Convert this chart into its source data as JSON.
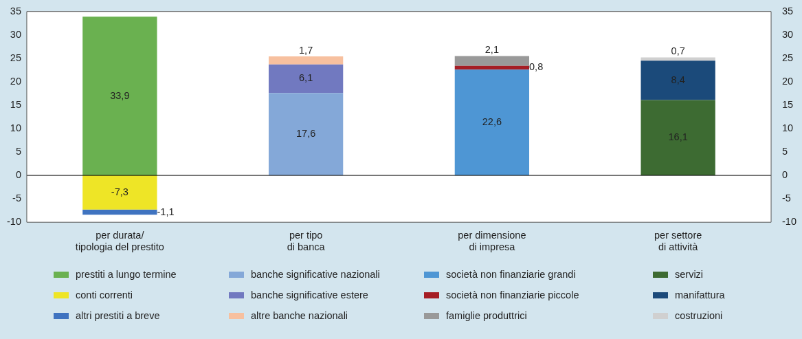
{
  "chart_data": {
    "type": "bar",
    "stacked": true,
    "categories": [
      "per durata/\ntipologia del prestito",
      "per tipo\ndi banca",
      "per dimensione\ndi impresa",
      "per settore\ndi attività"
    ],
    "ylim": [
      -10,
      35
    ],
    "yticks": [
      -10,
      -5,
      0,
      5,
      10,
      15,
      20,
      25,
      30,
      35
    ],
    "y2lim": [
      -10,
      35
    ],
    "y2ticks": [
      -10,
      -5,
      0,
      5,
      10,
      15,
      20,
      25,
      30,
      35
    ],
    "grid": false,
    "legend": "bottom",
    "ref_lines": [
      {
        "axis": "y",
        "value": 0
      }
    ],
    "series": [
      {
        "name": "prestiti a lungo termine",
        "color": "#6ab150",
        "values": [
          33.9,
          null,
          null,
          null
        ],
        "value_labels": [
          "33,9",
          null,
          null,
          null
        ]
      },
      {
        "name": "conti correnti",
        "color": "#eee526",
        "values": [
          -7.3,
          null,
          null,
          null
        ],
        "value_labels": [
          "-7,3",
          null,
          null,
          null
        ]
      },
      {
        "name": "altri prestiti a breve",
        "color": "#3f73c0",
        "values": [
          -1.1,
          null,
          null,
          null
        ],
        "value_labels": [
          "-1,1",
          null,
          null,
          null
        ]
      },
      {
        "name": "banche significative nazionali",
        "color": "#84a8d8",
        "values": [
          null,
          17.6,
          null,
          null
        ],
        "value_labels": [
          null,
          "17,6",
          null,
          null
        ]
      },
      {
        "name": "banche significative estere",
        "color": "#7179c0",
        "values": [
          null,
          6.1,
          null,
          null
        ],
        "value_labels": [
          null,
          "6,1",
          null,
          null
        ]
      },
      {
        "name": "altre banche nazionali",
        "color": "#f7c09f",
        "values": [
          null,
          1.7,
          null,
          null
        ],
        "value_labels": [
          null,
          "1,7",
          null,
          null
        ]
      },
      {
        "name": "società non finanziarie grandi",
        "color": "#4e96d4",
        "values": [
          null,
          null,
          22.6,
          null
        ],
        "value_labels": [
          null,
          null,
          "22,6",
          null
        ]
      },
      {
        "name": "società non finanziarie piccole",
        "color": "#a51d24",
        "values": [
          null,
          null,
          0.8,
          null
        ],
        "value_labels": [
          null,
          null,
          "0,8",
          null
        ]
      },
      {
        "name": "famiglie produttrici",
        "color": "#999999",
        "values": [
          null,
          null,
          2.1,
          null
        ],
        "value_labels": [
          null,
          null,
          "2,1",
          null
        ]
      },
      {
        "name": "servizi",
        "color": "#3d6b32",
        "values": [
          null,
          null,
          null,
          16.1
        ],
        "value_labels": [
          null,
          null,
          null,
          "16,1"
        ]
      },
      {
        "name": "manifattura",
        "color": "#1b4a7a",
        "values": [
          null,
          null,
          null,
          8.4
        ],
        "value_labels": [
          null,
          null,
          null,
          "8,4"
        ]
      },
      {
        "name": "costruzioni",
        "color": "#d0d0d0",
        "values": [
          null,
          null,
          null,
          0.7
        ],
        "value_labels": [
          null,
          null,
          null,
          "0,7"
        ]
      }
    ]
  }
}
